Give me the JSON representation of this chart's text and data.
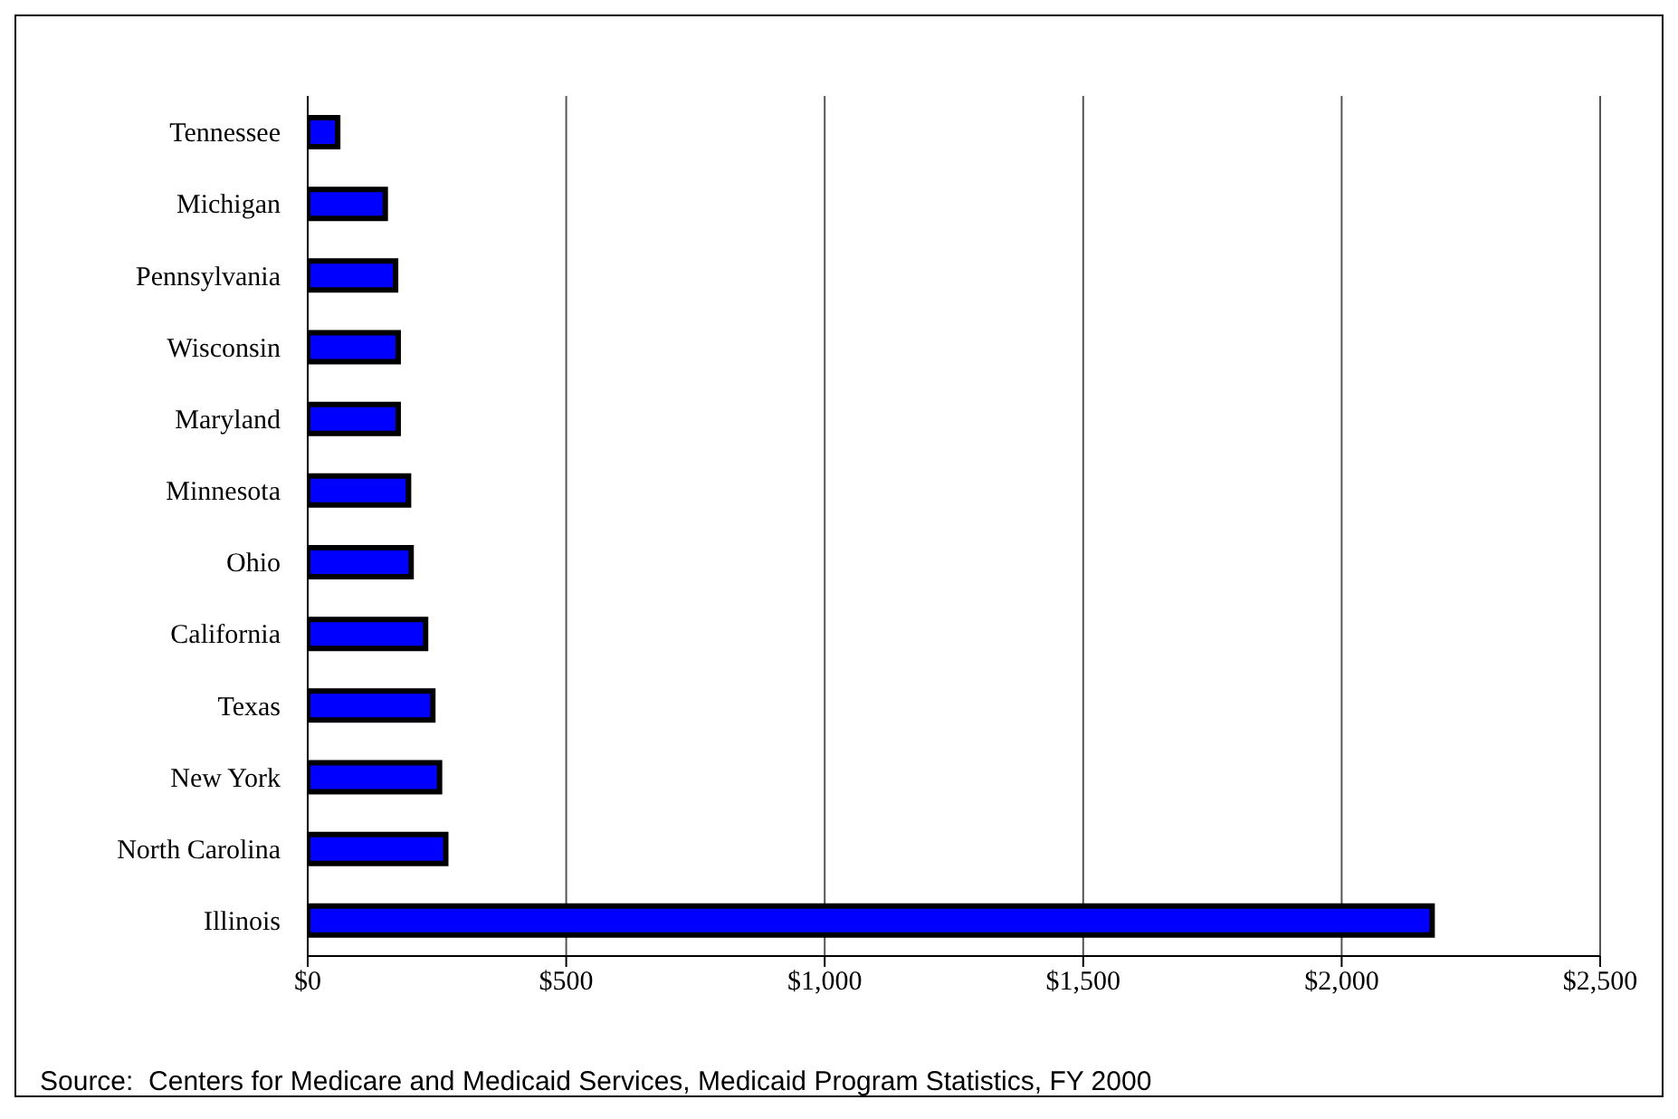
{
  "chart_data": {
    "type": "bar",
    "orientation": "horizontal",
    "categories": [
      "Tennessee",
      "Michigan",
      "Pennsylvania",
      "Wisconsin",
      "Maryland",
      "Minnesota",
      "Ohio",
      "California",
      "Texas",
      "New York",
      "North Carolina",
      "Illinois"
    ],
    "values": [
      58,
      150,
      170,
      175,
      175,
      195,
      200,
      228,
      242,
      255,
      267,
      2175
    ],
    "color": "#0000ff",
    "xlim": [
      0,
      2500
    ],
    "xticks": [
      {
        "value": 0,
        "label": "$0"
      },
      {
        "value": 500,
        "label": "$500"
      },
      {
        "value": 1000,
        "label": "$1,000"
      },
      {
        "value": 1500,
        "label": "$1,500"
      },
      {
        "value": 2000,
        "label": "$2,000"
      },
      {
        "value": 2500,
        "label": "$2,500"
      }
    ],
    "grid": "x",
    "annotations": [
      "Source:  Centers for Medicare and Medicaid Services, Medicaid Program Statistics, FY 2000"
    ]
  }
}
